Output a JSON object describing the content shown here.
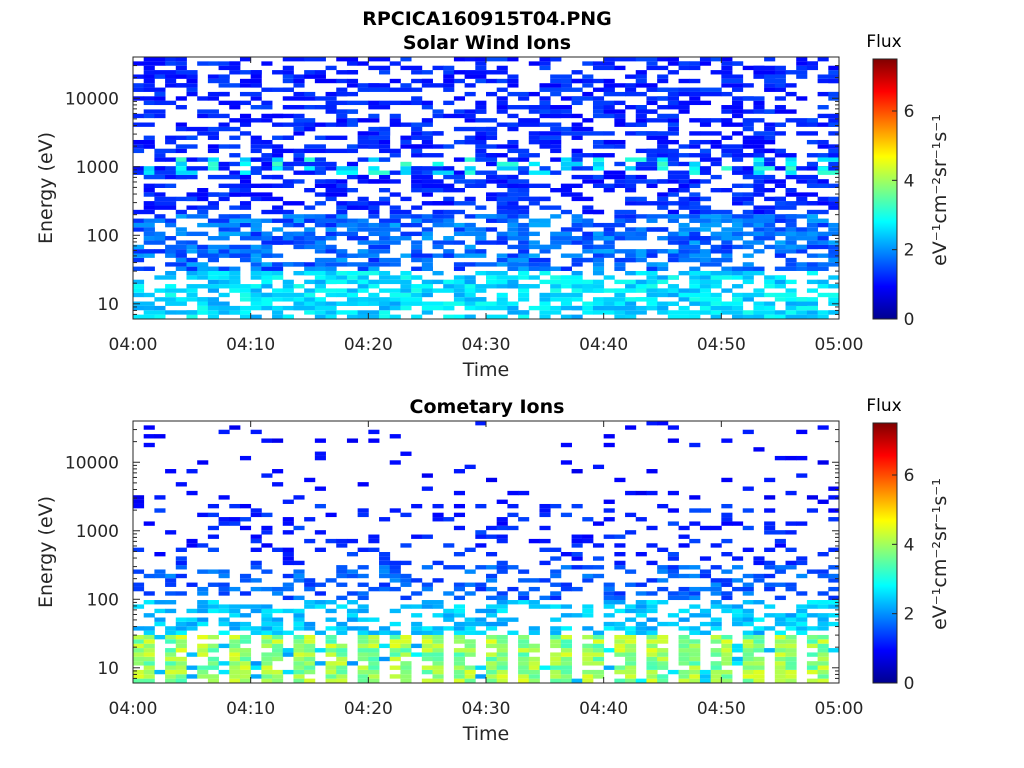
{
  "figure": {
    "title": "RPCICA160915T04.PNG"
  },
  "chart_data": [
    {
      "type": "heatmap",
      "title": "Solar Wind Ions",
      "xlabel": "Time",
      "ylabel": "Energy (eV)",
      "x_range": [
        "04:00",
        "05:00"
      ],
      "x_ticks": [
        "04:00",
        "04:10",
        "04:20",
        "04:30",
        "04:40",
        "04:50",
        "05:00"
      ],
      "y_scale": "log",
      "y_range": [
        6,
        40000
      ],
      "y_ticks": [
        "10",
        "100",
        "1000",
        "10000"
      ],
      "colorbar": {
        "title": "Flux",
        "label": "eV⁻¹cm⁻²sr⁻¹s⁻¹",
        "range": [
          0,
          7.5
        ],
        "ticks": [
          "0",
          "2",
          "4",
          "6"
        ],
        "colormap": "jet"
      },
      "pattern": "solar-wind"
    },
    {
      "type": "heatmap",
      "title": "Cometary Ions",
      "xlabel": "Time",
      "ylabel": "Energy (eV)",
      "x_range": [
        "04:00",
        "05:00"
      ],
      "x_ticks": [
        "04:00",
        "04:10",
        "04:20",
        "04:30",
        "04:40",
        "04:50",
        "05:00"
      ],
      "y_scale": "log",
      "y_range": [
        6,
        40000
      ],
      "y_ticks": [
        "10",
        "100",
        "1000",
        "10000"
      ],
      "colorbar": {
        "title": "Flux",
        "label": "eV⁻¹cm⁻²sr⁻¹s⁻¹",
        "range": [
          0,
          7.5
        ],
        "ticks": [
          "0",
          "2",
          "4",
          "6"
        ],
        "colormap": "jet"
      },
      "pattern": "cometary"
    }
  ]
}
